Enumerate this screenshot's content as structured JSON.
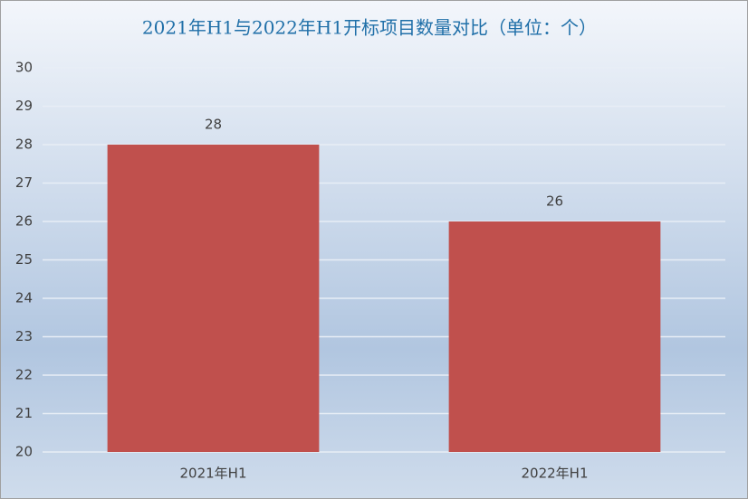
{
  "chart_data": {
    "type": "bar",
    "title": "2021年H1与2022年H1开标项目数量对比（单位：个）",
    "categories": [
      "2021年H1",
      "2022年H1"
    ],
    "values": [
      28,
      26
    ],
    "color": "#c0504d",
    "ylim": [
      20,
      30
    ],
    "yticks": [
      20,
      21,
      22,
      23,
      24,
      25,
      26,
      27,
      28,
      29,
      30
    ],
    "grid": true
  }
}
